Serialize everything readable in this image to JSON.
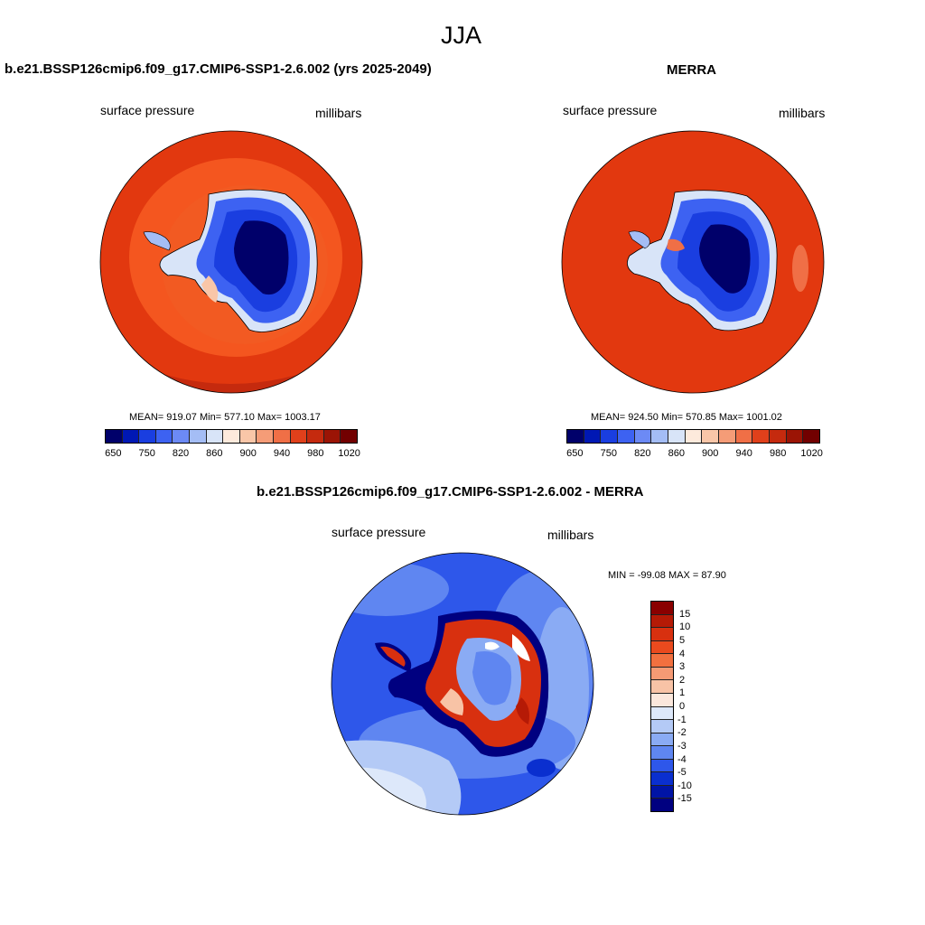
{
  "figure": {
    "title": "JJA"
  },
  "panels": [
    {
      "title": "b.e21.BSSP126cmip6.f09_g17.CMIP6-SSP1-2.6.002 (yrs 2025-2049)",
      "left_label": "surface pressure",
      "right_label": "millibars",
      "stats": "MEAN= 919.07  Min= 577.10  Max= 1003.17"
    },
    {
      "title": "MERRA",
      "left_label": "surface pressure",
      "right_label": "millibars",
      "stats": "MEAN= 924.50  Min= 570.85  Max= 1001.02"
    },
    {
      "title": "b.e21.BSSP126cmip6.f09_g17.CMIP6-SSP1-2.6.002 - MERRA",
      "left_label": "surface pressure",
      "right_label": "millibars",
      "stats": "MIN = -99.08 MAX =  87.90"
    }
  ],
  "colorbar_abs": {
    "tick_labels": [
      "650",
      "750",
      "820",
      "860",
      "900",
      "940",
      "980",
      "1020"
    ],
    "colors": [
      "#00006a",
      "#0018b4",
      "#1a3ee0",
      "#3d62f2",
      "#6c8af5",
      "#a4bdf5",
      "#d8e4f8",
      "#fdeadc",
      "#f9c6a8",
      "#f59c77",
      "#f06f46",
      "#e0401b",
      "#c52a0e",
      "#9b1405",
      "#720000"
    ]
  },
  "colorbar_diff": {
    "tick_labels": [
      "15",
      "10",
      "5",
      "4",
      "3",
      "2",
      "1",
      "0",
      "-1",
      "-2",
      "-3",
      "-4",
      "-5",
      "-10",
      "-15"
    ],
    "colors": [
      "#8a0000",
      "#b51a06",
      "#d8300f",
      "#ea4a1e",
      "#f2703f",
      "#f59a74",
      "#f8c3a6",
      "#fbe7dc",
      "#dde8fa",
      "#b4caf6",
      "#8aabf4",
      "#5f86f1",
      "#2e57ea",
      "#0a2fcf",
      "#0014a6",
      "#000080"
    ]
  },
  "chart_data": {
    "type": "heatmap",
    "title": "JJA",
    "variable": "surface pressure",
    "units": "millibars",
    "maps": [
      {
        "name": "b.e21.BSSP126cmip6.f09_g17.CMIP6-SSP1-2.6.002 (yrs 2025-2049)",
        "mean": 919.07,
        "min": 577.1,
        "max": 1003.17,
        "levels": [
          650,
          700,
          750,
          800,
          820,
          840,
          860,
          880,
          900,
          920,
          940,
          960,
          980,
          1000,
          1020
        ]
      },
      {
        "name": "MERRA",
        "mean": 924.5,
        "min": 570.85,
        "max": 1001.02,
        "levels": [
          650,
          700,
          750,
          800,
          820,
          840,
          860,
          880,
          900,
          920,
          940,
          960,
          980,
          1000,
          1020
        ]
      },
      {
        "name": "b.e21.BSSP126cmip6.f09_g17.CMIP6-SSP1-2.6.002 - MERRA",
        "min": -99.08,
        "max": 87.9,
        "levels": [
          15,
          10,
          5,
          4,
          3,
          2,
          1,
          0,
          -1,
          -2,
          -3,
          -4,
          -5,
          -10,
          -15
        ]
      }
    ]
  }
}
